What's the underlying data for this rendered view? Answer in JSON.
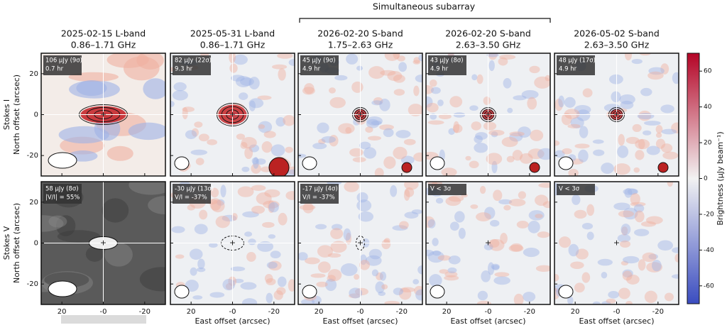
{
  "chart_data": {
    "type": "image-grid",
    "bracket_label": "Simultaneous subarray",
    "columns": [
      {
        "title": "2025-02-15  L-band",
        "band": "0.86–1.71 GHz"
      },
      {
        "title": "2025-05-31  L-band",
        "band": "0.86–1.71 GHz"
      },
      {
        "title": "2026-02-20  S-band",
        "band": "1.75–2.63 GHz"
      },
      {
        "title": "2026-02-20  S-band",
        "band": "2.63–3.50 GHz"
      },
      {
        "title": "2026-05-02  S-band",
        "band": "2.63–3.50 GHz"
      }
    ],
    "rows": [
      {
        "stokes": "Stokes I",
        "ylabel": "North offset (arcsec)"
      },
      {
        "stokes": "Stokes V",
        "ylabel": "North offset (arcsec)"
      }
    ],
    "annotations": [
      [
        [
          "106 μJy (9σ)",
          "0.7 hr"
        ],
        [
          "82 μJy (22σ)",
          "9.3 hr"
        ],
        [
          "45 μJy (9σ)",
          "4.9 hr"
        ],
        [
          "43 μJy (8σ)",
          "4.9 hr"
        ],
        [
          "48 μJy (17σ)",
          "4.9 hr"
        ]
      ],
      [
        [
          "58 μJy (8σ)",
          "|V/I| = 55%"
        ],
        [
          "-30 μJy (13σ)",
          "V/I = -37%"
        ],
        [
          "-17 μJy (4σ)",
          "V/I = -37%"
        ],
        [
          "V < 3σ"
        ],
        [
          "V < 3σ"
        ]
      ]
    ],
    "x_label": "East offset (arcsec)",
    "xlim": [
      30,
      -30
    ],
    "xticks": [
      20,
      {
        "value": 0,
        "label": "-0"
      },
      -20
    ],
    "ylim": [
      -30,
      30
    ],
    "yticks": [
      20,
      0,
      -20
    ],
    "colorbar": {
      "label": "Brightness (μJy beam⁻¹)",
      "lim": [
        -70,
        70
      ],
      "ticks": [
        60,
        40,
        20,
        0,
        -20,
        -40,
        -60
      ]
    }
  }
}
